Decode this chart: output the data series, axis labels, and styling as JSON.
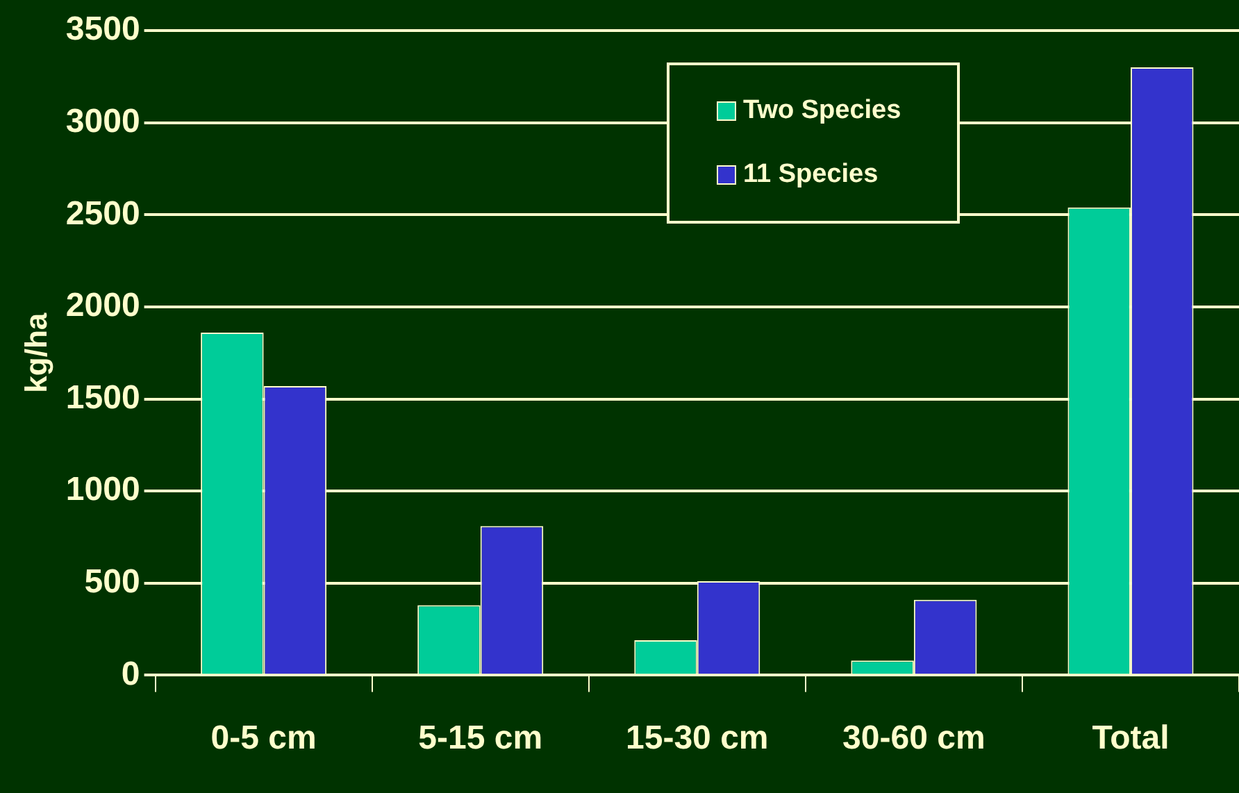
{
  "chart_data": {
    "type": "bar",
    "ylabel": "kg/ha",
    "categories": [
      "0-5 cm",
      "5-15 cm",
      "15-30 cm",
      "30-60 cm",
      "Total"
    ],
    "series": [
      {
        "name": "Two Species",
        "color": "#00cc99",
        "values": [
          1860,
          380,
          190,
          80,
          2540
        ]
      },
      {
        "name": "11 Species",
        "color": "#3333cc",
        "values": [
          1570,
          810,
          510,
          410,
          3300
        ]
      }
    ],
    "ylim": [
      0,
      3500
    ],
    "yticks": [
      0,
      500,
      1000,
      1500,
      2000,
      2500,
      3000,
      3500
    ],
    "grid": "y",
    "legend": "top right"
  }
}
